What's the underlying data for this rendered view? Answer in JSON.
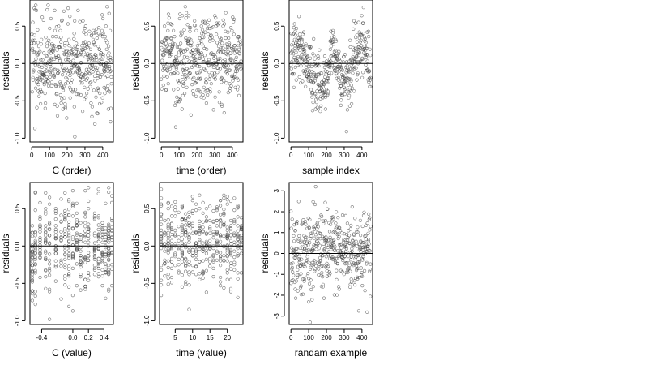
{
  "chart_data": [
    {
      "type": "scatter",
      "xlabel": "C (order)",
      "ylabel": "residuals",
      "xlim": [
        -10,
        460
      ],
      "ylim": [
        -1.05,
        0.85
      ],
      "xticks": [
        0,
        100,
        200,
        300,
        400
      ],
      "xtick_labels": [
        "0",
        "100",
        "200",
        "300",
        "400"
      ],
      "yticks": [
        -1.0,
        -0.5,
        0.0,
        0.5
      ],
      "ytick_labels": [
        "-1.0",
        "-0.5",
        "0.0",
        "0.5"
      ],
      "hline": 0,
      "marker": "open-circle",
      "series": [
        {
          "points": []
        }
      ]
    },
    {
      "type": "scatter",
      "xlabel": "time (order)",
      "ylabel": "residuals",
      "xlim": [
        -10,
        460
      ],
      "ylim": [
        -1.05,
        0.85
      ],
      "xticks": [
        0,
        100,
        200,
        300,
        400
      ],
      "xtick_labels": [
        "0",
        "100",
        "200",
        "300",
        "400"
      ],
      "yticks": [
        -1.0,
        -0.5,
        0.0,
        0.5
      ],
      "ytick_labels": [
        "-1.0",
        "-0.5",
        "0.0",
        "0.5"
      ],
      "hline": 0,
      "marker": "open-circle",
      "series": [
        {
          "points": []
        }
      ]
    },
    {
      "type": "scatter",
      "xlabel": "sample index",
      "ylabel": "residuals",
      "xlim": [
        -10,
        460
      ],
      "ylim": [
        -1.05,
        0.85
      ],
      "xticks": [
        0,
        100,
        200,
        300,
        400
      ],
      "xtick_labels": [
        "0",
        "100",
        "200",
        "300",
        "400"
      ],
      "yticks": [
        -1.0,
        -0.5,
        0.0,
        0.5
      ],
      "ytick_labels": [
        "-1.0",
        "-0.5",
        "0.0",
        "0.5"
      ],
      "hline": 0,
      "marker": "open-circle",
      "series": [
        {
          "points": []
        }
      ]
    },
    {
      "type": "scatter",
      "xlabel": "C (value)",
      "ylabel": "residuals",
      "xlim": [
        -0.55,
        0.52
      ],
      "ylim": [
        -1.05,
        0.85
      ],
      "xticks": [
        -0.4,
        0.0,
        0.2,
        0.4
      ],
      "xtick_labels": [
        "-0.4",
        "0.0",
        "0.2",
        "0.4"
      ],
      "yticks": [
        -1.0,
        -0.5,
        0.0,
        0.5
      ],
      "ytick_labels": [
        "-1.0",
        "-0.5",
        "0.0",
        "0.5"
      ],
      "hline": 0,
      "marker": "open-circle",
      "series": [
        {
          "points": []
        }
      ]
    },
    {
      "type": "scatter",
      "xlabel": "time (value)",
      "ylabel": "residuals",
      "xlim": [
        0.5,
        24.5
      ],
      "ylim": [
        -1.05,
        0.85
      ],
      "xticks": [
        5,
        10,
        15,
        20
      ],
      "xtick_labels": [
        "5",
        "10",
        "15",
        "20"
      ],
      "yticks": [
        -1.0,
        -0.5,
        0.0,
        0.5
      ],
      "ytick_labels": [
        "-1.0",
        "-0.5",
        "0.0",
        "0.5"
      ],
      "hline": 0,
      "marker": "open-circle",
      "series": [
        {
          "points": []
        }
      ]
    },
    {
      "type": "scatter",
      "xlabel": "randam example",
      "ylabel": "residuals",
      "xlim": [
        -10,
        460
      ],
      "ylim": [
        -3.4,
        3.4
      ],
      "xticks": [
        0,
        100,
        200,
        300,
        400
      ],
      "xtick_labels": [
        "0",
        "100",
        "200",
        "300",
        "400"
      ],
      "yticks": [
        -3,
        -2,
        -1,
        0,
        1,
        2,
        3
      ],
      "ytick_labels": [
        "-3",
        "-2",
        "-1",
        "0",
        "1",
        "2",
        "3"
      ],
      "hline": 0,
      "marker": "open-circle",
      "series": [
        {
          "points": []
        }
      ]
    }
  ],
  "colors": {
    "marker_stroke": "#444444",
    "axis": "#000000",
    "background": "#ffffff"
  }
}
